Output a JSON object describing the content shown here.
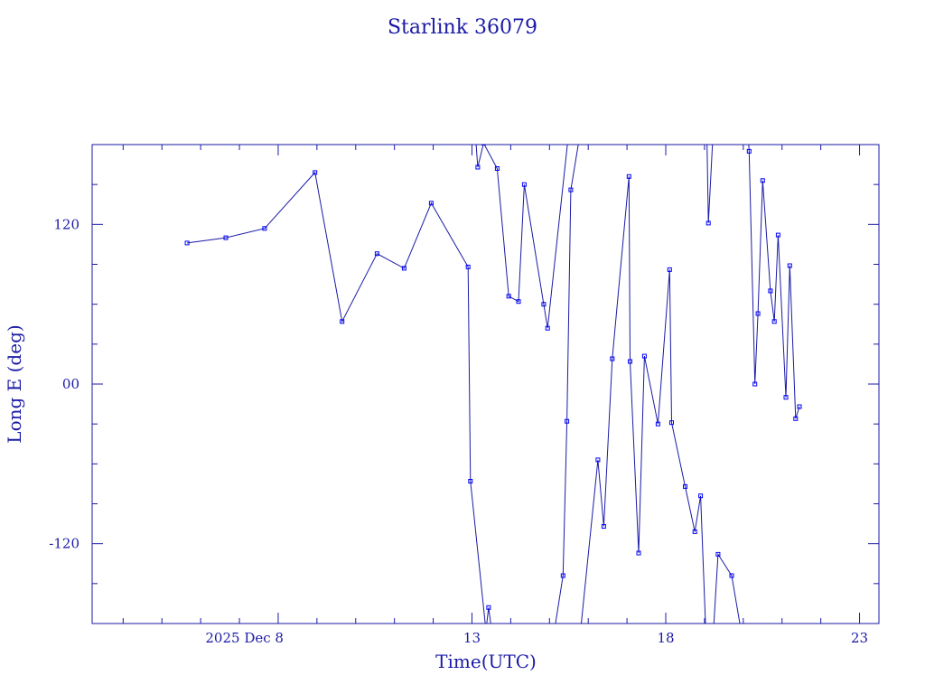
{
  "chart_data": {
    "type": "line",
    "title": "Starlink 36079",
    "xlabel": "Time(UTC)",
    "ylabel": "Long E (deg)",
    "x_unit": "day of December 2025",
    "xlim": [
      3.2,
      23.5
    ],
    "ylim": [
      -180,
      180
    ],
    "x_ticks": [
      {
        "value": 8,
        "label": "2025 Dec  8"
      },
      {
        "value": 13,
        "label": "13"
      },
      {
        "value": 18,
        "label": "18"
      },
      {
        "value": 23,
        "label": "23"
      }
    ],
    "y_ticks": [
      {
        "value": 120,
        "label": "120"
      },
      {
        "value": 0,
        "label": "00"
      },
      {
        "value": -120,
        "label": "-120"
      }
    ],
    "grid": false,
    "legend": "none",
    "colors": {
      "line": "#1a1aa6",
      "marker": "#0000ff",
      "text": "#1a1aa6"
    },
    "series": [
      {
        "points": [
          [
            5.65,
            106
          ],
          [
            6.65,
            110
          ],
          [
            7.65,
            117
          ],
          [
            8.95,
            159
          ],
          [
            9.65,
            47
          ],
          [
            10.55,
            98
          ],
          [
            11.25,
            87
          ],
          [
            11.95,
            136
          ],
          [
            12.9,
            88
          ],
          [
            12.96,
            -73
          ],
          [
            13.4,
            -196
          ]
        ]
      },
      {
        "points": [
          [
            13.05,
            203
          ],
          [
            13.15,
            163
          ],
          [
            13.3,
            181
          ],
          [
            13.65,
            162
          ],
          [
            13.95,
            66
          ],
          [
            14.2,
            62
          ],
          [
            14.35,
            150
          ],
          [
            14.85,
            60
          ],
          [
            14.95,
            42
          ],
          [
            15.5,
            190
          ]
        ]
      },
      {
        "points": [
          [
            13.3,
            -200
          ],
          [
            13.43,
            -168
          ],
          [
            13.6,
            -205
          ]
        ]
      },
      {
        "points": [
          [
            15.1,
            -190
          ],
          [
            15.35,
            -144
          ],
          [
            15.45,
            -28
          ],
          [
            15.55,
            146
          ],
          [
            15.8,
            190
          ]
        ]
      },
      {
        "points": [
          [
            15.75,
            -200
          ],
          [
            16.25,
            -57
          ],
          [
            16.4,
            -107
          ],
          [
            16.62,
            19
          ],
          [
            17.05,
            156
          ],
          [
            17.08,
            17
          ],
          [
            17.3,
            -127
          ],
          [
            17.45,
            21
          ],
          [
            17.8,
            -30
          ],
          [
            18.1,
            86
          ],
          [
            18.15,
            -29
          ],
          [
            18.5,
            -77
          ],
          [
            18.75,
            -111
          ],
          [
            18.9,
            -84
          ],
          [
            19.05,
            -200
          ]
        ]
      },
      {
        "points": [
          [
            19.05,
            205
          ],
          [
            19.1,
            121
          ],
          [
            19.25,
            205
          ]
        ]
      },
      {
        "points": [
          [
            19.2,
            -200
          ],
          [
            19.35,
            -128
          ],
          [
            19.7,
            -144
          ],
          [
            20.0,
            -195
          ]
        ]
      },
      {
        "points": [
          [
            20.1,
            200
          ],
          [
            20.15,
            175
          ],
          [
            20.3,
            0
          ],
          [
            20.38,
            53
          ],
          [
            20.5,
            153
          ],
          [
            20.7,
            70
          ],
          [
            20.8,
            47
          ],
          [
            20.9,
            112
          ],
          [
            21.1,
            -10
          ],
          [
            21.2,
            89
          ],
          [
            21.35,
            -26
          ],
          [
            21.45,
            -17
          ]
        ]
      }
    ]
  }
}
